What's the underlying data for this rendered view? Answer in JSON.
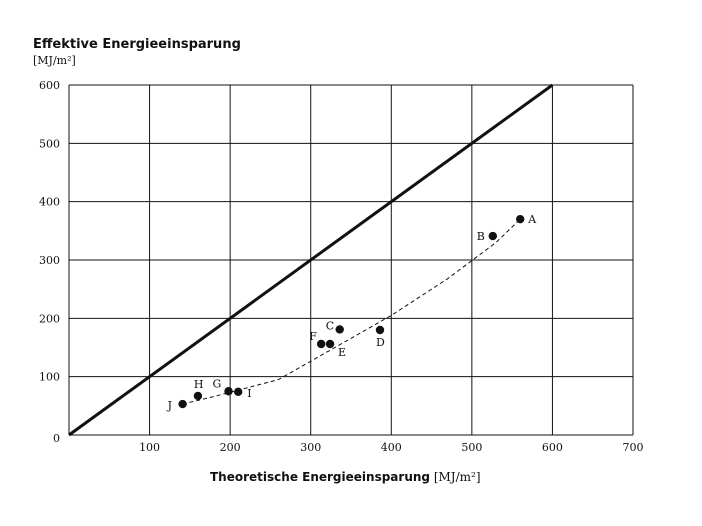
{
  "chart_data": {
    "type": "scatter",
    "title": "",
    "ylabel": "Effektive Energieeinsparung",
    "ylabel_unit": "[MJ/m²]",
    "xlabel": "Theoretische Energieeinsparung",
    "xlabel_unit": "[MJ/m²]",
    "xlim": [
      0,
      700
    ],
    "ylim": [
      0,
      600
    ],
    "xticks": [
      100,
      200,
      300,
      400,
      500,
      600,
      700
    ],
    "yticks": [
      0,
      100,
      200,
      300,
      400,
      500,
      600
    ],
    "grid": true,
    "reference_line": {
      "name": "y = x",
      "x": [
        0,
        600
      ],
      "y": [
        0,
        600
      ]
    },
    "points": [
      {
        "label": "A",
        "x": 560,
        "y": 370
      },
      {
        "label": "B",
        "x": 526,
        "y": 341
      },
      {
        "label": "C",
        "x": 336,
        "y": 181
      },
      {
        "label": "D",
        "x": 386,
        "y": 180
      },
      {
        "label": "E",
        "x": 324,
        "y": 156
      },
      {
        "label": "F",
        "x": 313,
        "y": 156
      },
      {
        "label": "G",
        "x": 198,
        "y": 75
      },
      {
        "label": "H",
        "x": 160,
        "y": 67
      },
      {
        "label": "I",
        "x": 210,
        "y": 74
      },
      {
        "label": "J",
        "x": 141,
        "y": 53
      }
    ],
    "trend": "dashed curve through points J to A"
  }
}
